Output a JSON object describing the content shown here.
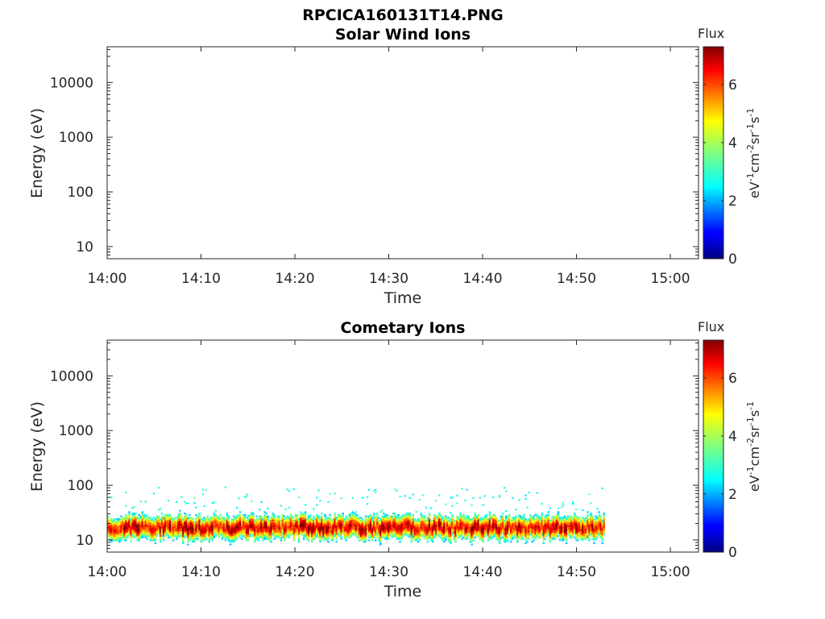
{
  "figure_title": "RPCICA160131T14.PNG",
  "chart_data": [
    {
      "type": "heatmap",
      "title": "Solar Wind Ions",
      "xlabel": "Time",
      "ylabel": "Energy (eV)",
      "x_ticks": [
        "14:00",
        "14:10",
        "14:20",
        "14:30",
        "14:40",
        "14:50",
        "15:00"
      ],
      "x_range_minutes": [
        0,
        63
      ],
      "y_scale": "log",
      "y_ticks": [
        "10",
        "100",
        "1000",
        "10000"
      ],
      "y_range": [
        6,
        45000
      ],
      "data": "empty",
      "colorbar": {
        "label_top": "Flux",
        "label_side": "eV-1cm-2sr-1s-1",
        "ticks": [
          "0",
          "2",
          "4",
          "6"
        ],
        "range": [
          0,
          7.3
        ],
        "colormap": "jet"
      }
    },
    {
      "type": "heatmap",
      "title": "Cometary Ions",
      "xlabel": "Time",
      "ylabel": "Energy (eV)",
      "x_ticks": [
        "14:00",
        "14:10",
        "14:20",
        "14:30",
        "14:40",
        "14:50",
        "15:00"
      ],
      "x_range_minutes": [
        0,
        63
      ],
      "y_scale": "log",
      "y_ticks": [
        "10",
        "100",
        "1000",
        "10000"
      ],
      "y_range": [
        6,
        45000
      ],
      "data_time_range_minutes": [
        0,
        53
      ],
      "band": {
        "core_energy_ev": [
          10,
          25
        ],
        "peak_energy_ev": 17,
        "peak_flux": 6.8,
        "sparse_energy_ev": [
          30,
          90
        ],
        "sparse_flux": 3
      },
      "colorbar": {
        "label_top": "Flux",
        "label_side": "eV-1cm-2sr-1s-1",
        "ticks": [
          "0",
          "2",
          "4",
          "6"
        ],
        "range": [
          0,
          7.3
        ],
        "colormap": "jet"
      }
    }
  ]
}
